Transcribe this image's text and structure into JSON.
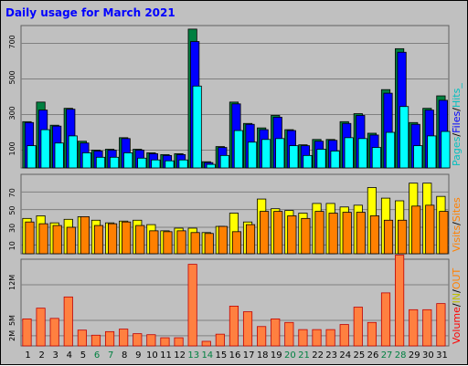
{
  "chart_data": {
    "type": "bar",
    "title": "Daily usage for March 2021",
    "days": [
      "1",
      "2",
      "3",
      "4",
      "5",
      "6",
      "7",
      "8",
      "9",
      "10",
      "11",
      "12",
      "13",
      "14",
      "15",
      "16",
      "17",
      "18",
      "19",
      "20",
      "21",
      "22",
      "23",
      "24",
      "25",
      "26",
      "27",
      "28",
      "29",
      "30",
      "31"
    ],
    "weekend_days": [
      "6",
      "7",
      "13",
      "14",
      "20",
      "21",
      "27",
      "28"
    ],
    "panels": [
      {
        "id": "hits",
        "ymax": 800,
        "yticks": [
          100,
          300,
          500,
          700
        ],
        "series": [
          {
            "name": "Hits",
            "color": "#008040",
            "values": [
              260,
              370,
              240,
              335,
              150,
              100,
              105,
              170,
              105,
              85,
              75,
              80,
              780,
              35,
              120,
              370,
              250,
              225,
              295,
              215,
              130,
              160,
              160,
              260,
              305,
              195,
              440,
              670,
              255,
              335,
              405
            ]
          },
          {
            "name": "Files",
            "color": "#0000ff",
            "values": [
              255,
              325,
              235,
              330,
              140,
              95,
              100,
              165,
              100,
              80,
              70,
              75,
              710,
              30,
              115,
              360,
              245,
              215,
              285,
              210,
              125,
              150,
              155,
              250,
              295,
              185,
              420,
              650,
              245,
              325,
              380
            ]
          },
          {
            "name": "Pages",
            "color": "#00ffff",
            "values": [
              125,
              215,
              140,
              180,
              85,
              60,
              60,
              85,
              55,
              45,
              40,
              45,
              460,
              20,
              70,
              210,
              145,
              160,
              165,
              125,
              70,
              105,
              95,
              170,
              165,
              115,
              200,
              345,
              125,
              180,
              205
            ]
          }
        ],
        "side_label": [
          {
            "text": "Pages",
            "color": "#00c0c0"
          },
          {
            "text": "/",
            "color": "#000000"
          },
          {
            "text": "Files",
            "color": "#0000ff"
          },
          {
            "text": "/",
            "color": "#000000"
          },
          {
            "text": "Hits_",
            "color": "#00c0c0"
          }
        ]
      },
      {
        "id": "visits",
        "ymax": 90,
        "yticks": [
          10,
          30,
          50,
          70
        ],
        "series": [
          {
            "name": "Sites",
            "color": "#ffff00",
            "values": [
              40,
              43,
              35,
              39,
              42,
              38,
              35,
              37,
              38,
              33,
              26,
              29,
              29,
              24,
              31,
              46,
              36,
              62,
              51,
              49,
              46,
              57,
              57,
              53,
              55,
              75,
              63,
              60,
              80,
              80,
              65
            ]
          },
          {
            "name": "Visits",
            "color": "#ff8000",
            "values": [
              36,
              34,
              32,
              30,
              42,
              32,
              34,
              36,
              32,
              26,
              25,
              26,
              24,
              23,
              31,
              25,
              33,
              48,
              48,
              43,
              40,
              48,
              46,
              47,
              47,
              43,
              38,
              38,
              54,
              55,
              48
            ]
          }
        ],
        "side_label": [
          {
            "text": "Visits",
            "color": "#ff8000"
          },
          {
            "text": "/",
            "color": "#000000"
          },
          {
            "text": "Sites",
            "color": "#ff8000"
          }
        ]
      },
      {
        "id": "volume",
        "ymax": 17,
        "yticks_labels": [
          "2M",
          "5M",
          "12M"
        ],
        "yticks": [
          2,
          5,
          12
        ],
        "series": [
          {
            "name": "Volume",
            "color": "#ff8040",
            "values": [
              5.3,
              7.4,
              5.4,
              9.6,
              3.1,
              2.1,
              2.8,
              3.3,
              2.4,
              2.2,
              1.6,
              1.6,
              16.0,
              0.9,
              2.3,
              7.8,
              6.7,
              3.8,
              5.3,
              4.6,
              3.2,
              3.2,
              3.2,
              4.2,
              7.6,
              4.6,
              10.4,
              17.8,
              7.1,
              7.1,
              8.3
            ]
          }
        ],
        "side_label": [
          {
            "text": "Volume",
            "color": "#ff0000"
          },
          {
            "text": "/",
            "color": "#000000"
          },
          {
            "text": "IN",
            "color": "#c0c000"
          },
          {
            "text": "/",
            "color": "#000000"
          },
          {
            "text": "OUT",
            "color": "#ff8000"
          }
        ]
      }
    ],
    "colors": {
      "title": "#0000ff",
      "weekday_label": "#000000",
      "weekend_label": "#008040",
      "plot_bg": "#c0c0c0",
      "grid": "#808080",
      "volume_outline": "#c00000"
    }
  }
}
